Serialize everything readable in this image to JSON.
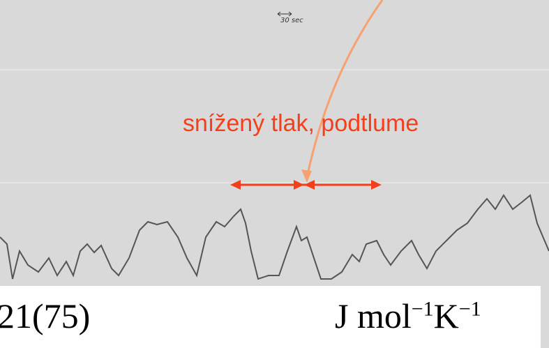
{
  "scale_label": "30 sec",
  "annotation": "snížený tlak,  podtlume",
  "footer": {
    "value": "21(75)",
    "unit_parts": [
      "J mol",
      "−1",
      "K",
      "−1"
    ]
  }
}
